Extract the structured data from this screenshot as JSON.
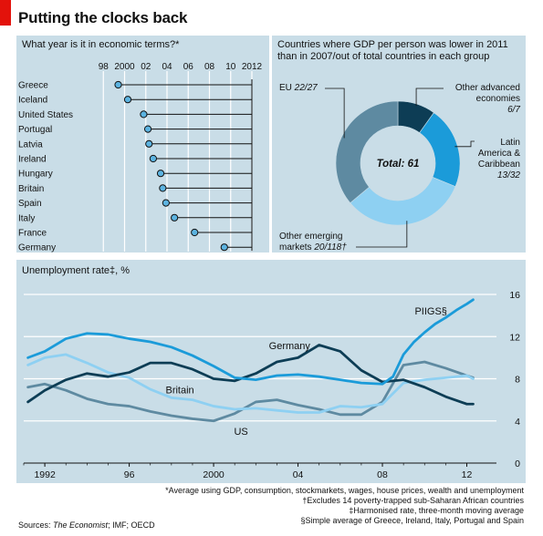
{
  "title": "Putting the clocks back",
  "colors": {
    "panel_bg": "#c9dde7",
    "dot_fill": "#5cb3e0",
    "dark_navy": "#0d3d55",
    "mid_blue": "#1b9bd9",
    "light_blue": "#8ed0f2",
    "grey_blue": "#5e8aa1",
    "accent_red": "#e3120b"
  },
  "chart_data": [
    {
      "type": "dot",
      "title": "What year is it in economic terms?*",
      "x_ticks": [
        "98",
        "2000",
        "02",
        "04",
        "06",
        "08",
        "10",
        "2012"
      ],
      "xlim": [
        1996,
        2012
      ],
      "baseline_year": 2012,
      "categories": [
        "Greece",
        "Iceland",
        "United States",
        "Portugal",
        "Latvia",
        "Ireland",
        "Hungary",
        "Britain",
        "Spain",
        "Italy",
        "France",
        "Germany"
      ],
      "values": [
        1999.4,
        2000.3,
        2001.8,
        2002.2,
        2002.3,
        2002.7,
        2003.4,
        2003.6,
        2003.9,
        2004.7,
        2006.6,
        2009.4
      ]
    },
    {
      "type": "pie",
      "style": "donut",
      "title": "Countries where GDP per person was lower in 2011 than in 2007/out of total countries in each group",
      "center_label": "Total: 61",
      "slices": [
        {
          "name": "Other advanced economies",
          "label_line1": "Other advanced",
          "label_line2": "economies",
          "fraction": "6/7",
          "value": 6,
          "color": "#0d3d55"
        },
        {
          "name": "Latin America & Caribbean",
          "label_line1": "Latin",
          "label_line2": "America &",
          "label_line3": "Caribbean",
          "fraction": "13/32",
          "value": 13,
          "color": "#1b9bd9"
        },
        {
          "name": "Other emerging markets",
          "label_line1": "Other emerging",
          "label_line2": "markets",
          "fraction": "20/118†",
          "value": 20,
          "color": "#8ed0f2"
        },
        {
          "name": "EU",
          "label_line1": "EU",
          "fraction": "22/27",
          "value": 22,
          "color": "#5e8aa1"
        }
      ]
    },
    {
      "type": "line",
      "title": "Unemployment rate‡, %",
      "xlim": [
        1991,
        2012.8
      ],
      "ylim": [
        0,
        16
      ],
      "y_ticks": [
        0,
        4,
        8,
        12,
        16
      ],
      "x_ticks": [
        {
          "value": 1992,
          "label": "1992"
        },
        {
          "value": 1996,
          "label": "96"
        },
        {
          "value": 2000,
          "label": "2000"
        },
        {
          "value": 2004,
          "label": "04"
        },
        {
          "value": 2008,
          "label": "08"
        },
        {
          "value": 2012,
          "label": "12"
        }
      ],
      "series": [
        {
          "name": "PIIGS§",
          "color": "#1b9bd9",
          "label_x": 2010.3,
          "label_y": 14.1,
          "x": [
            1991.2,
            1992,
            1993,
            1994,
            1995,
            1996,
            1997,
            1998,
            1999,
            2000,
            2001,
            2002,
            2003,
            2004,
            2005,
            2006,
            2007,
            2008,
            2008.5,
            2009,
            2009.5,
            2010,
            2010.5,
            2011,
            2011.5,
            2012,
            2012.3
          ],
          "y": [
            10,
            10.6,
            11.8,
            12.3,
            12.2,
            11.8,
            11.5,
            11,
            10.2,
            9.2,
            8.1,
            7.9,
            8.3,
            8.4,
            8.2,
            7.9,
            7.6,
            7.5,
            8.2,
            10.3,
            11.5,
            12.4,
            13.2,
            13.8,
            14.5,
            15.1,
            15.5
          ]
        },
        {
          "name": "Germany",
          "color": "#0d3d55",
          "label_x": 2003.6,
          "label_y": 10.8,
          "x": [
            1991.2,
            1992,
            1993,
            1994,
            1995,
            1996,
            1997,
            1998,
            1999,
            2000,
            2001,
            2002,
            2003,
            2004,
            2005,
            2006,
            2007,
            2008,
            2009,
            2010,
            2011,
            2012,
            2012.3
          ],
          "y": [
            5.8,
            6.9,
            7.9,
            8.5,
            8.2,
            8.6,
            9.5,
            9.5,
            8.9,
            8.0,
            7.8,
            8.5,
            9.6,
            10.0,
            11.2,
            10.6,
            8.8,
            7.7,
            7.9,
            7.2,
            6.3,
            5.6,
            5.6
          ]
        },
        {
          "name": "Britain",
          "color": "#8ed0f2",
          "label_x": 1998.4,
          "label_y": 6.6,
          "x": [
            1991.2,
            1992,
            1993,
            1994,
            1995,
            1996,
            1997,
            1998,
            1999,
            2000,
            2001,
            2002,
            2003,
            2004,
            2005,
            2006,
            2007,
            2008,
            2009,
            2010,
            2011,
            2012,
            2012.3
          ],
          "y": [
            9.3,
            10,
            10.3,
            9.5,
            8.6,
            8.1,
            7.0,
            6.2,
            6.0,
            5.4,
            5.1,
            5.2,
            5.0,
            4.8,
            4.8,
            5.4,
            5.3,
            5.6,
            7.6,
            7.9,
            8.1,
            8.3,
            8.0
          ]
        },
        {
          "name": "US",
          "color": "#5e8aa1",
          "label_x": 2001.3,
          "label_y": 2.7,
          "x": [
            1991.2,
            1992,
            1993,
            1994,
            1995,
            1996,
            1997,
            1998,
            1999,
            2000,
            2001,
            2002,
            2003,
            2004,
            2005,
            2006,
            2007,
            2008,
            2009,
            2010,
            2011,
            2012,
            2012.3
          ],
          "y": [
            7.2,
            7.5,
            6.9,
            6.1,
            5.6,
            5.4,
            4.9,
            4.5,
            4.2,
            4.0,
            4.7,
            5.8,
            6.0,
            5.5,
            5.1,
            4.6,
            4.6,
            5.8,
            9.3,
            9.6,
            9.0,
            8.3,
            8.1
          ]
        }
      ]
    }
  ],
  "footnotes": [
    "*Average using GDP, consumption, stockmarkets, wages, house prices, wealth and unemployment",
    "†Excludes 14 poverty-trapped sub-Saharan African countries",
    "‡Harmonised rate, three-month moving average",
    "§Simple average of Greece, Ireland, Italy, Portugal and Spain"
  ],
  "sources": {
    "prefix": "Sources: ",
    "italic": "The Economist",
    "suffix": "; IMF; OECD"
  }
}
